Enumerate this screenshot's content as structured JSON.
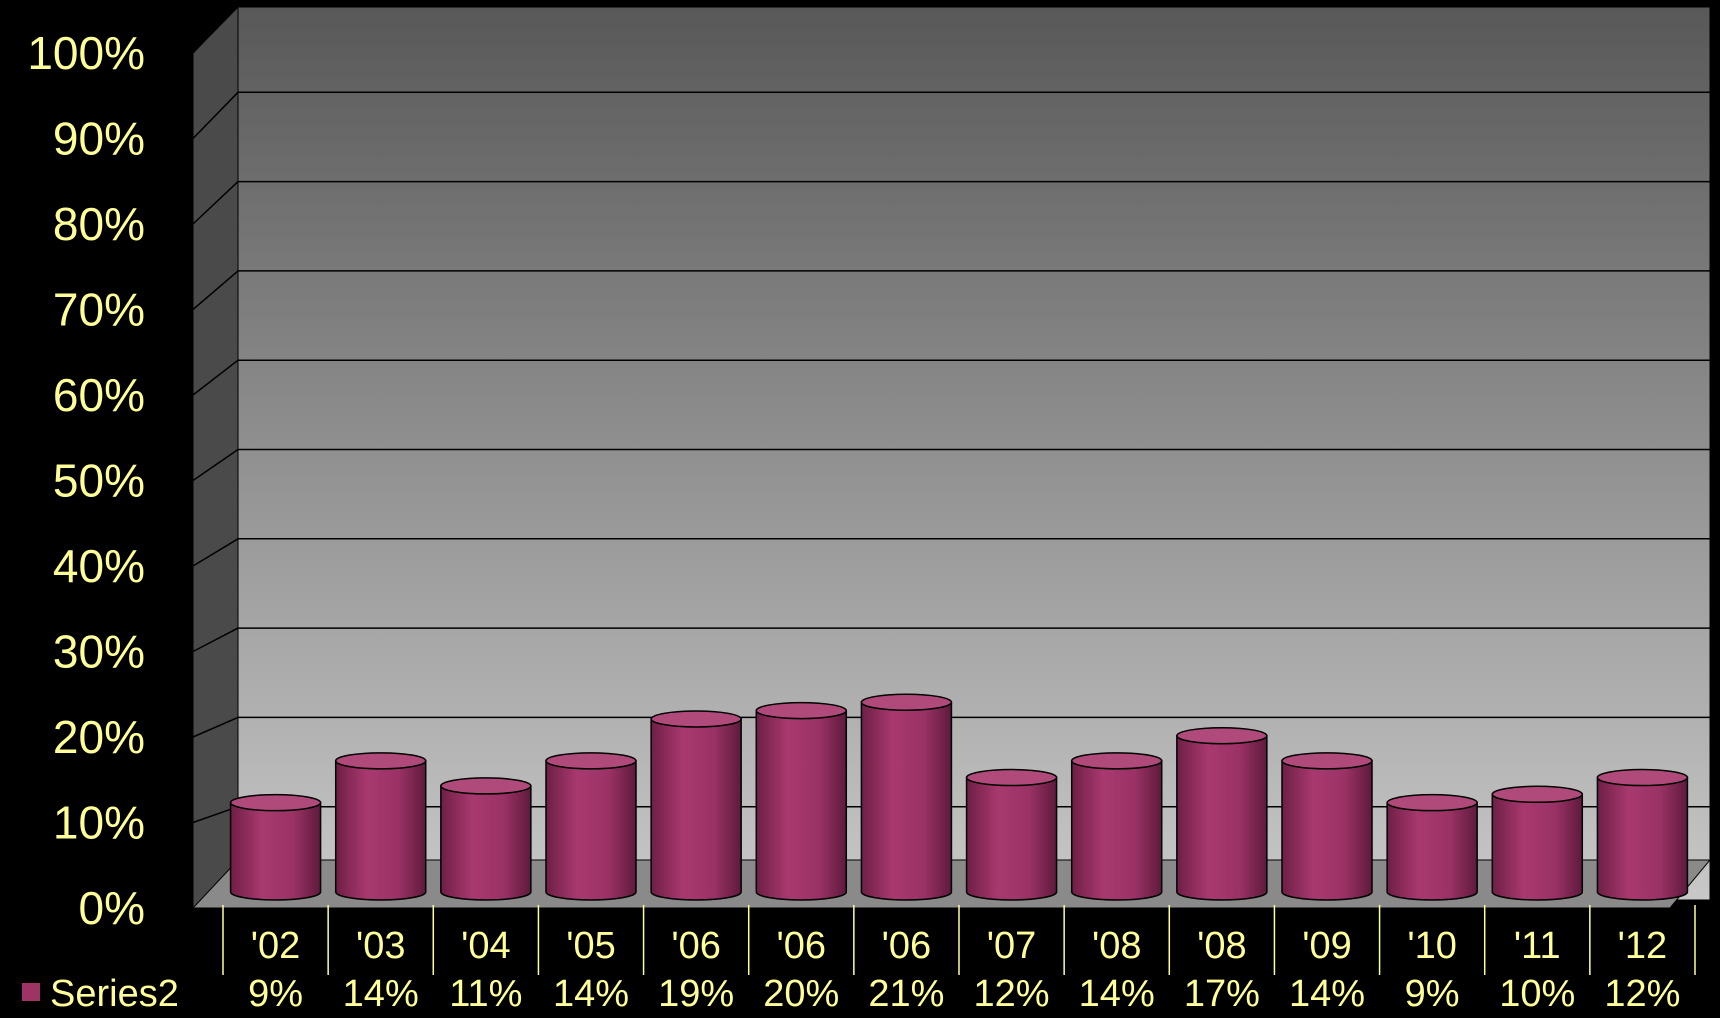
{
  "chart_data": {
    "type": "bar",
    "style": "3d-cylinder",
    "categories": [
      "'02",
      "'03",
      "'04",
      "'05",
      "'06",
      "'06",
      "'06",
      "'07",
      "'08",
      "'08",
      "'09",
      "'10",
      "'11",
      "'12"
    ],
    "series": [
      {
        "name": "Series2",
        "values": [
          9,
          14,
          11,
          14,
          19,
          20,
          21,
          12,
          14,
          17,
          14,
          9,
          10,
          12
        ],
        "value_labels": [
          "9%",
          "14%",
          "11%",
          "14%",
          "19%",
          "20%",
          "21%",
          "12%",
          "14%",
          "17%",
          "14%",
          "9%",
          "10%",
          "12%"
        ],
        "color": "#9e3366"
      }
    ],
    "y_ticks": [
      "0%",
      "10%",
      "20%",
      "30%",
      "40%",
      "50%",
      "60%",
      "70%",
      "80%",
      "90%",
      "100%"
    ],
    "ylim": [
      0,
      100
    ],
    "grid": true,
    "legend": "data-table-bottom-left",
    "colors": {
      "background": "#000000",
      "label_text": "#ffff99",
      "wall_top": "#585858",
      "wall_bottom": "#c8c8c8",
      "side_wall": "#4a4a4a",
      "floor": "#8a8a8a",
      "gridline": "#000000",
      "bar": "#9e3366",
      "bar_top": "#b04a7a",
      "bar_outline": "#000000"
    }
  }
}
